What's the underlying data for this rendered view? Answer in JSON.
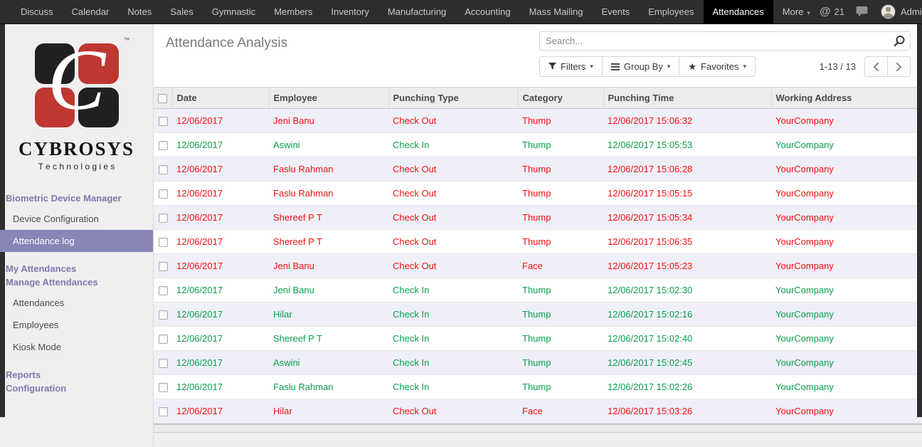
{
  "colors": {
    "check_in": "#0b9e4d",
    "check_out": "#f31111",
    "accent_purple": "#7c7bad",
    "selected_menu_bg": "#8786b7",
    "logo_red": "#be3731",
    "logo_black": "#211f1f",
    "navbar_bg": "#2d2d2d",
    "active_tab_bg": "#000000"
  },
  "nav": {
    "items": [
      "Discuss",
      "Calendar",
      "Notes",
      "Sales",
      "Gymnastic",
      "Members",
      "Inventory",
      "Manufacturing",
      "Accounting",
      "Mass Mailing",
      "Events",
      "Employees",
      "Attendances",
      "More"
    ],
    "active_item": "Attendances",
    "mention_glyph": "@",
    "mention_count": "21",
    "user_name": "Administrator"
  },
  "sidebar": {
    "logo": {
      "monogram": "C",
      "tm": "™",
      "brand": "CYBROSYS",
      "tagline": "T e c h n o l o g i e s"
    },
    "items": [
      {
        "label": "Biometric Device Manager",
        "type": "heading",
        "selected": false
      },
      {
        "label": "Device Configuration",
        "type": "link",
        "selected": false
      },
      {
        "label": "Attendance log",
        "type": "link",
        "selected": true
      },
      {
        "label": "My Attendances",
        "type": "heading",
        "selected": false
      },
      {
        "label": "Manage Attendances",
        "type": "heading",
        "selected": false
      },
      {
        "label": "Attendances",
        "type": "link",
        "selected": false
      },
      {
        "label": "Employees",
        "type": "link",
        "selected": false
      },
      {
        "label": "Kiosk Mode",
        "type": "link",
        "selected": false
      },
      {
        "label": "Reports",
        "type": "heading",
        "selected": false
      },
      {
        "label": "Configuration",
        "type": "heading",
        "selected": false
      }
    ]
  },
  "page": {
    "title": "Attendance Analysis"
  },
  "search": {
    "placeholder": "Search...",
    "value": ""
  },
  "toolbar": {
    "filters_label": "Filters",
    "group_by_label": "Group By",
    "favorites_label": "Favorites"
  },
  "pager": {
    "range": "1-13 / 13"
  },
  "table": {
    "columns": [
      "Date",
      "Employee",
      "Punching Type",
      "Category",
      "Punching Time",
      "Working Address"
    ],
    "rows": [
      {
        "date": "12/06/2017",
        "employee": "Jeni Banu",
        "punching_type": "Check Out",
        "category": "Thump",
        "punching_time": "12/06/2017 15:06:32",
        "working_address": "YourCompany",
        "status": "out"
      },
      {
        "date": "12/06/2017",
        "employee": "Aswini",
        "punching_type": "Check In",
        "category": "Thump",
        "punching_time": "12/06/2017 15:05:53",
        "working_address": "YourCompany",
        "status": "in"
      },
      {
        "date": "12/06/2017",
        "employee": "Faslu Rahman",
        "punching_type": "Check Out",
        "category": "Thump",
        "punching_time": "12/06/2017 15:06:28",
        "working_address": "YourCompany",
        "status": "out"
      },
      {
        "date": "12/06/2017",
        "employee": "Faslu Rahman",
        "punching_type": "Check Out",
        "category": "Thump",
        "punching_time": "12/06/2017 15:05:15",
        "working_address": "YourCompany",
        "status": "out"
      },
      {
        "date": "12/06/2017",
        "employee": "Shereef P T",
        "punching_type": "Check Out",
        "category": "Thump",
        "punching_time": "12/06/2017 15:05:34",
        "working_address": "YourCompany",
        "status": "out"
      },
      {
        "date": "12/06/2017",
        "employee": "Shereef P T",
        "punching_type": "Check Out",
        "category": "Thump",
        "punching_time": "12/06/2017 15:06:35",
        "working_address": "YourCompany",
        "status": "out"
      },
      {
        "date": "12/06/2017",
        "employee": "Jeni Banu",
        "punching_type": "Check Out",
        "category": "Face",
        "punching_time": "12/06/2017 15:05:23",
        "working_address": "YourCompany",
        "status": "out"
      },
      {
        "date": "12/06/2017",
        "employee": "Jeni Banu",
        "punching_type": "Check In",
        "category": "Thump",
        "punching_time": "12/06/2017 15:02:30",
        "working_address": "YourCompany",
        "status": "in"
      },
      {
        "date": "12/06/2017",
        "employee": "Hilar",
        "punching_type": "Check In",
        "category": "Thump",
        "punching_time": "12/06/2017 15:02:16",
        "working_address": "YourCompany",
        "status": "in"
      },
      {
        "date": "12/06/2017",
        "employee": "Shereef P T",
        "punching_type": "Check In",
        "category": "Thump",
        "punching_time": "12/06/2017 15:02:40",
        "working_address": "YourCompany",
        "status": "in"
      },
      {
        "date": "12/06/2017",
        "employee": "Aswini",
        "punching_type": "Check In",
        "category": "Thump",
        "punching_time": "12/06/2017 15:02:45",
        "working_address": "YourCompany",
        "status": "in"
      },
      {
        "date": "12/06/2017",
        "employee": "Faslu Rahman",
        "punching_type": "Check In",
        "category": "Thump",
        "punching_time": "12/06/2017 15:02:26",
        "working_address": "YourCompany",
        "status": "in"
      },
      {
        "date": "12/06/2017",
        "employee": "Hilar",
        "punching_type": "Check Out",
        "category": "Face",
        "punching_time": "12/06/2017 15:03:26",
        "working_address": "YourCompany",
        "status": "out"
      }
    ]
  }
}
